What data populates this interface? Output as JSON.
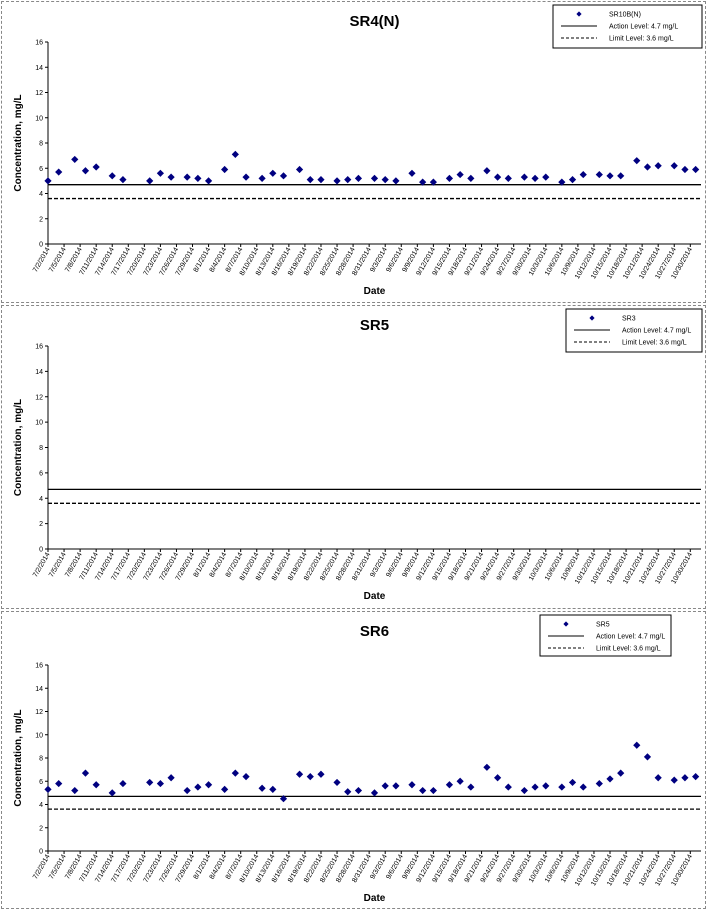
{
  "chart_data": [
    {
      "type": "scatter",
      "title": "SR4(N)",
      "xlabel": "Date",
      "ylabel": "Concentration, mg/L",
      "ylim": [
        0,
        16
      ],
      "yticks": [
        "0",
        "2",
        "4",
        "6",
        "8",
        "10",
        "12",
        "14",
        "16"
      ],
      "x_ticks": [
        "7/2/2014",
        "7/5/2014",
        "7/8/2014",
        "7/11/2014",
        "7/14/2014",
        "7/17/2014",
        "7/20/2014",
        "7/23/2014",
        "7/26/2014",
        "7/29/2014",
        "8/1/2014",
        "8/4/2014",
        "8/7/2014",
        "8/10/2014",
        "8/13/2014",
        "8/16/2014",
        "8/19/2014",
        "8/22/2014",
        "8/25/2014",
        "8/28/2014",
        "8/31/2014",
        "9/3/2014",
        "9/6/2014",
        "9/9/2014",
        "9/12/2014",
        "9/15/2014",
        "9/18/2014",
        "9/21/2014",
        "9/24/2014",
        "9/27/2014",
        "9/30/2014",
        "10/3/2014",
        "10/6/2014",
        "10/9/2014",
        "10/12/2014",
        "10/15/2014",
        "10/18/2014",
        "10/21/2014",
        "10/24/2014",
        "10/27/2014",
        "10/30/2014"
      ],
      "x_range": [
        "7/2/2014",
        "11/1/2014"
      ],
      "legend_position": "top-right",
      "grid": false,
      "series": [
        {
          "name": "SR10B(N)",
          "color": "#000080",
          "marker": "diamond",
          "points": [
            {
              "x": "7/2/2014",
              "y": 5.0
            },
            {
              "x": "7/4/2014",
              "y": 5.7
            },
            {
              "x": "7/7/2014",
              "y": 6.7
            },
            {
              "x": "7/9/2014",
              "y": 5.8
            },
            {
              "x": "7/11/2014",
              "y": 6.1
            },
            {
              "x": "7/14/2014",
              "y": 5.4
            },
            {
              "x": "7/16/2014",
              "y": 5.1
            },
            {
              "x": "7/21/2014",
              "y": 5.0
            },
            {
              "x": "7/23/2014",
              "y": 5.6
            },
            {
              "x": "7/25/2014",
              "y": 5.3
            },
            {
              "x": "7/28/2014",
              "y": 5.3
            },
            {
              "x": "7/30/2014",
              "y": 5.2
            },
            {
              "x": "8/1/2014",
              "y": 5.0
            },
            {
              "x": "8/4/2014",
              "y": 5.9
            },
            {
              "x": "8/6/2014",
              "y": 7.1
            },
            {
              "x": "8/8/2014",
              "y": 5.3
            },
            {
              "x": "8/11/2014",
              "y": 5.2
            },
            {
              "x": "8/13/2014",
              "y": 5.6
            },
            {
              "x": "8/15/2014",
              "y": 5.4
            },
            {
              "x": "8/18/2014",
              "y": 5.9
            },
            {
              "x": "8/20/2014",
              "y": 5.1
            },
            {
              "x": "8/22/2014",
              "y": 5.1
            },
            {
              "x": "8/25/2014",
              "y": 5.0
            },
            {
              "x": "8/27/2014",
              "y": 5.1
            },
            {
              "x": "8/29/2014",
              "y": 5.2
            },
            {
              "x": "9/1/2014",
              "y": 5.2
            },
            {
              "x": "9/3/2014",
              "y": 5.1
            },
            {
              "x": "9/5/2014",
              "y": 5.0
            },
            {
              "x": "9/8/2014",
              "y": 5.6
            },
            {
              "x": "9/10/2014",
              "y": 4.9
            },
            {
              "x": "9/12/2014",
              "y": 4.9
            },
            {
              "x": "9/15/2014",
              "y": 5.2
            },
            {
              "x": "9/17/2014",
              "y": 5.5
            },
            {
              "x": "9/19/2014",
              "y": 5.2
            },
            {
              "x": "9/22/2014",
              "y": 5.8
            },
            {
              "x": "9/24/2014",
              "y": 5.3
            },
            {
              "x": "9/26/2014",
              "y": 5.2
            },
            {
              "x": "9/29/2014",
              "y": 5.3
            },
            {
              "x": "10/1/2014",
              "y": 5.2
            },
            {
              "x": "10/3/2014",
              "y": 5.3
            },
            {
              "x": "10/6/2014",
              "y": 4.9
            },
            {
              "x": "10/8/2014",
              "y": 5.1
            },
            {
              "x": "10/10/2014",
              "y": 5.5
            },
            {
              "x": "10/13/2014",
              "y": 5.5
            },
            {
              "x": "10/15/2014",
              "y": 5.4
            },
            {
              "x": "10/17/2014",
              "y": 5.4
            },
            {
              "x": "10/20/2014",
              "y": 6.6
            },
            {
              "x": "10/22/2014",
              "y": 6.1
            },
            {
              "x": "10/24/2014",
              "y": 6.2
            },
            {
              "x": "10/27/2014",
              "y": 6.2
            },
            {
              "x": "10/29/2014",
              "y": 5.9
            },
            {
              "x": "10/31/2014",
              "y": 5.9
            }
          ]
        }
      ],
      "reference_lines": [
        {
          "name": "Action Level: 4.7 mg/L",
          "y": 4.7,
          "style": "solid",
          "color": "#000000"
        },
        {
          "name": "Limit Level: 3.6 mg/L",
          "y": 3.6,
          "style": "dashed",
          "color": "#000000"
        }
      ]
    },
    {
      "type": "scatter",
      "title": "SR5",
      "xlabel": "Date",
      "ylabel": "Concentration, mg/L",
      "ylim": [
        0,
        16
      ],
      "yticks": [
        "0",
        "2",
        "4",
        "6",
        "8",
        "10",
        "12",
        "14",
        "16"
      ],
      "x_ticks": [
        "7/2/2014",
        "7/5/2014",
        "7/8/2014",
        "7/11/2014",
        "7/14/2014",
        "7/17/2014",
        "7/20/2014",
        "7/23/2014",
        "7/26/2014",
        "7/29/2014",
        "8/1/2014",
        "8/4/2014",
        "8/7/2014",
        "8/10/2014",
        "8/13/2014",
        "8/16/2014",
        "8/19/2014",
        "8/22/2014",
        "8/25/2014",
        "8/28/2014",
        "8/31/2014",
        "9/3/2014",
        "9/6/2014",
        "9/9/2014",
        "9/12/2014",
        "9/15/2014",
        "9/18/2014",
        "9/21/2014",
        "9/24/2014",
        "9/27/2014",
        "9/30/2014",
        "10/3/2014",
        "10/6/2014",
        "10/9/2014",
        "10/12/2014",
        "10/15/2014",
        "10/18/2014",
        "10/21/2014",
        "10/24/2014",
        "10/27/2014",
        "10/30/2014"
      ],
      "x_range": [
        "7/2/2014",
        "11/1/2014"
      ],
      "legend_position": "top-right",
      "grid": false,
      "series": [
        {
          "name": "SR3",
          "color": "#000080",
          "marker": "diamond",
          "points": []
        }
      ],
      "reference_lines": [
        {
          "name": "Action Level: 4.7 mg/L",
          "y": 4.7,
          "style": "solid",
          "color": "#000000"
        },
        {
          "name": "Limit Level: 3.6 mg/L",
          "y": 3.6,
          "style": "dashed",
          "color": "#000000"
        }
      ]
    },
    {
      "type": "scatter",
      "title": "SR6",
      "xlabel": "Date",
      "ylabel": "Concentration, mg/L",
      "ylim": [
        0,
        16
      ],
      "yticks": [
        "0",
        "2",
        "4",
        "6",
        "8",
        "10",
        "12",
        "14",
        "16"
      ],
      "x_ticks": [
        "7/2/2014",
        "7/5/2014",
        "7/8/2014",
        "7/11/2014",
        "7/14/2014",
        "7/17/2014",
        "7/20/2014",
        "7/23/2014",
        "7/26/2014",
        "7/29/2014",
        "8/1/2014",
        "8/4/2014",
        "8/7/2014",
        "8/10/2014",
        "8/13/2014",
        "8/16/2014",
        "8/19/2014",
        "8/22/2014",
        "8/25/2014",
        "8/28/2014",
        "8/31/2014",
        "9/3/2014",
        "9/6/2014",
        "9/9/2014",
        "9/12/2014",
        "9/15/2014",
        "9/18/2014",
        "9/21/2014",
        "9/24/2014",
        "9/27/2014",
        "9/30/2014",
        "10/3/2014",
        "10/6/2014",
        "10/9/2014",
        "10/12/2014",
        "10/15/2014",
        "10/18/2014",
        "10/21/2014",
        "10/24/2014",
        "10/27/2014",
        "10/30/2014"
      ],
      "x_range": [
        "7/2/2014",
        "11/1/2014"
      ],
      "legend_position": "top-right",
      "grid": false,
      "series": [
        {
          "name": "SR5",
          "color": "#000080",
          "marker": "diamond",
          "points": [
            {
              "x": "7/2/2014",
              "y": 5.3
            },
            {
              "x": "7/4/2014",
              "y": 5.8
            },
            {
              "x": "7/7/2014",
              "y": 5.2
            },
            {
              "x": "7/9/2014",
              "y": 6.7
            },
            {
              "x": "7/11/2014",
              "y": 5.7
            },
            {
              "x": "7/14/2014",
              "y": 5.0
            },
            {
              "x": "7/16/2014",
              "y": 5.8
            },
            {
              "x": "7/21/2014",
              "y": 5.9
            },
            {
              "x": "7/23/2014",
              "y": 5.8
            },
            {
              "x": "7/25/2014",
              "y": 6.3
            },
            {
              "x": "7/28/2014",
              "y": 5.2
            },
            {
              "x": "7/30/2014",
              "y": 5.5
            },
            {
              "x": "8/1/2014",
              "y": 5.7
            },
            {
              "x": "8/4/2014",
              "y": 5.3
            },
            {
              "x": "8/6/2014",
              "y": 6.7
            },
            {
              "x": "8/8/2014",
              "y": 6.4
            },
            {
              "x": "8/11/2014",
              "y": 5.4
            },
            {
              "x": "8/13/2014",
              "y": 5.3
            },
            {
              "x": "8/15/2014",
              "y": 4.5
            },
            {
              "x": "8/18/2014",
              "y": 6.6
            },
            {
              "x": "8/20/2014",
              "y": 6.4
            },
            {
              "x": "8/22/2014",
              "y": 6.6
            },
            {
              "x": "8/25/2014",
              "y": 5.9
            },
            {
              "x": "8/27/2014",
              "y": 5.1
            },
            {
              "x": "8/29/2014",
              "y": 5.2
            },
            {
              "x": "9/1/2014",
              "y": 5.0
            },
            {
              "x": "9/3/2014",
              "y": 5.6
            },
            {
              "x": "9/5/2014",
              "y": 5.6
            },
            {
              "x": "9/8/2014",
              "y": 5.7
            },
            {
              "x": "9/10/2014",
              "y": 5.2
            },
            {
              "x": "9/12/2014",
              "y": 5.2
            },
            {
              "x": "9/15/2014",
              "y": 5.7
            },
            {
              "x": "9/17/2014",
              "y": 6.0
            },
            {
              "x": "9/19/2014",
              "y": 5.5
            },
            {
              "x": "9/22/2014",
              "y": 7.2
            },
            {
              "x": "9/24/2014",
              "y": 6.3
            },
            {
              "x": "9/26/2014",
              "y": 5.5
            },
            {
              "x": "9/29/2014",
              "y": 5.2
            },
            {
              "x": "10/1/2014",
              "y": 5.5
            },
            {
              "x": "10/3/2014",
              "y": 5.6
            },
            {
              "x": "10/6/2014",
              "y": 5.5
            },
            {
              "x": "10/8/2014",
              "y": 5.9
            },
            {
              "x": "10/10/2014",
              "y": 5.5
            },
            {
              "x": "10/13/2014",
              "y": 5.8
            },
            {
              "x": "10/15/2014",
              "y": 6.2
            },
            {
              "x": "10/17/2014",
              "y": 6.7
            },
            {
              "x": "10/20/2014",
              "y": 9.1
            },
            {
              "x": "10/22/2014",
              "y": 8.1
            },
            {
              "x": "10/24/2014",
              "y": 6.3
            },
            {
              "x": "10/27/2014",
              "y": 6.1
            },
            {
              "x": "10/29/2014",
              "y": 6.3
            },
            {
              "x": "10/31/2014",
              "y": 6.4
            }
          ]
        }
      ],
      "reference_lines": [
        {
          "name": "Action Level: 4.7 mg/L",
          "y": 4.7,
          "style": "solid",
          "color": "#000000"
        },
        {
          "name": "Limit Level: 3.6 mg/L",
          "y": 3.6,
          "style": "dashed",
          "color": "#000000"
        }
      ]
    }
  ]
}
